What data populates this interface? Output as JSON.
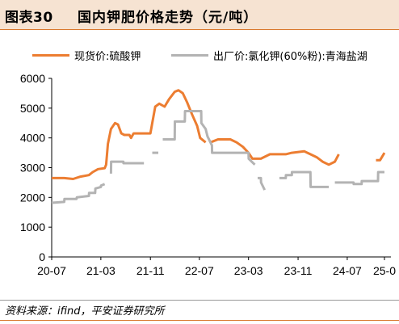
{
  "header": {
    "figure_label": "图表30",
    "title": "国内钾肥价格走势（元/吨）"
  },
  "footer": {
    "source": "资料来源：ifind，平安证券研究所"
  },
  "colors": {
    "title_bg": "#f6e3d2",
    "accent": "#d9792f",
    "series_spot": "#ec7d31",
    "series_factory": "#b3b3b3"
  },
  "chart_data": {
    "type": "line",
    "title": "国内钾肥价格走势（元/吨）",
    "xlabel": "",
    "ylabel": "",
    "ylim": [
      0,
      6000
    ],
    "yticks": [
      0,
      1000,
      2000,
      3000,
      4000,
      5000,
      6000
    ],
    "xlim": [
      "2020-07-01",
      "2025-01-01"
    ],
    "xticks": [
      {
        "date": "2020-07-01",
        "label": "20-07"
      },
      {
        "date": "2021-03-01",
        "label": "21-03"
      },
      {
        "date": "2021-11-01",
        "label": "21-11"
      },
      {
        "date": "2022-07-01",
        "label": "22-07"
      },
      {
        "date": "2023-03-01",
        "label": "23-03"
      },
      {
        "date": "2023-11-01",
        "label": "23-11"
      },
      {
        "date": "2024-07-01",
        "label": "24-07"
      },
      {
        "date": "2025-01-01",
        "label": "25-0"
      }
    ],
    "grid": false,
    "legend_position": "top",
    "series": [
      {
        "name": "现货价:硫酸钾",
        "color": "#ec7d31",
        "segments": [
          [
            [
              "2020-07-01",
              2650
            ],
            [
              "2020-09-01",
              2650
            ],
            [
              "2020-10-15",
              2620
            ],
            [
              "2020-11-20",
              2700
            ],
            [
              "2021-01-01",
              2750
            ],
            [
              "2021-01-20",
              2850
            ],
            [
              "2021-02-15",
              2950
            ],
            [
              "2021-03-20",
              2980
            ],
            [
              "2021-03-27",
              3100
            ],
            [
              "2021-04-05",
              3800
            ],
            [
              "2021-04-20",
              4300
            ],
            [
              "2021-05-10",
              4500
            ],
            [
              "2021-05-25",
              4450
            ],
            [
              "2021-06-10",
              4150
            ],
            [
              "2021-06-25",
              4100
            ],
            [
              "2021-07-20",
              4100
            ],
            [
              "2021-07-28",
              4000
            ],
            [
              "2021-08-10",
              4150
            ],
            [
              "2021-11-01",
              4150
            ],
            [
              "2021-11-10",
              4500
            ],
            [
              "2021-11-25",
              5050
            ],
            [
              "2021-12-15",
              5150
            ],
            [
              "2022-01-10",
              5050
            ],
            [
              "2022-02-01",
              5300
            ],
            [
              "2022-03-01",
              5550
            ],
            [
              "2022-03-20",
              5600
            ],
            [
              "2022-04-10",
              5500
            ],
            [
              "2022-05-01",
              5200
            ],
            [
              "2022-05-25",
              4800
            ],
            [
              "2022-06-20",
              4400
            ],
            [
              "2022-07-05",
              4000
            ],
            [
              "2022-08-01",
              3850
            ]
          ],
          [
            [
              "2022-08-25",
              3850
            ],
            [
              "2022-10-01",
              3950
            ],
            [
              "2022-12-01",
              3950
            ],
            [
              "2023-01-01",
              3850
            ],
            [
              "2023-02-01",
              3700
            ],
            [
              "2023-03-01",
              3500
            ],
            [
              "2023-03-20",
              3300
            ],
            [
              "2023-05-01",
              3300
            ],
            [
              "2023-06-15",
              3450
            ],
            [
              "2023-09-01",
              3450
            ],
            [
              "2023-10-01",
              3500
            ],
            [
              "2023-12-01",
              3550
            ],
            [
              "2024-01-01",
              3450
            ],
            [
              "2024-02-01",
              3350
            ],
            [
              "2024-03-01",
              3200
            ],
            [
              "2024-04-01",
              3100
            ],
            [
              "2024-05-01",
              3200
            ],
            [
              "2024-05-20",
              3450
            ]
          ],
          [
            [
              "2024-11-20",
              3250
            ],
            [
              "2024-12-10",
              3250
            ],
            [
              "2025-01-01",
              3500
            ]
          ]
        ]
      },
      {
        "name": "出厂价:氯化钾(60%粉):青海盐湖",
        "color": "#b3b3b3",
        "segments": [
          [
            [
              "2020-07-01",
              1820
            ],
            [
              "2020-09-01",
              1850
            ],
            [
              "2020-09-02",
              1950
            ],
            [
              "2020-11-01",
              1950
            ],
            [
              "2020-11-02",
              2000
            ],
            [
              "2021-01-01",
              2050
            ],
            [
              "2021-01-02",
              2150
            ],
            [
              "2021-02-01",
              2150
            ],
            [
              "2021-02-02",
              2300
            ],
            [
              "2021-03-01",
              2350
            ],
            [
              "2021-03-02",
              2400
            ],
            [
              "2021-03-20",
              2450
            ]
          ],
          [
            [
              "2021-04-20",
              2800
            ],
            [
              "2021-04-21",
              3200
            ],
            [
              "2021-06-20",
              3200
            ],
            [
              "2021-06-21",
              3150
            ],
            [
              "2021-09-30",
              3150
            ]
          ],
          [
            [
              "2021-11-10",
              3500
            ],
            [
              "2021-12-10",
              3500
            ]
          ],
          [
            [
              "2022-01-01",
              3950
            ],
            [
              "2022-03-01",
              3950
            ],
            [
              "2022-03-02",
              4550
            ],
            [
              "2022-04-20",
              4550
            ],
            [
              "2022-04-21",
              4900
            ],
            [
              "2022-07-10",
              4900
            ],
            [
              "2022-07-11",
              4500
            ],
            [
              "2022-08-01",
              4300
            ],
            [
              "2022-08-10",
              4050
            ],
            [
              "2022-09-01",
              3750
            ],
            [
              "2022-09-02",
              3500
            ],
            [
              "2023-03-01",
              3500
            ],
            [
              "2023-03-02",
              3300
            ],
            [
              "2023-04-01",
              3100
            ]
          ],
          [
            [
              "2023-04-15",
              2650
            ],
            [
              "2023-05-01",
              2650
            ],
            [
              "2023-05-02",
              2500
            ],
            [
              "2023-05-20",
              2250
            ]
          ],
          [
            [
              "2023-08-01",
              2650
            ],
            [
              "2023-09-01",
              2650
            ],
            [
              "2023-09-02",
              2750
            ],
            [
              "2023-10-01",
              2750
            ],
            [
              "2023-10-02",
              2850
            ],
            [
              "2024-01-01",
              2850
            ],
            [
              "2024-01-02",
              2350
            ],
            [
              "2024-04-01",
              2350
            ]
          ],
          [
            [
              "2024-05-01",
              2500
            ],
            [
              "2024-08-01",
              2500
            ],
            [
              "2024-08-02",
              2450
            ],
            [
              "2024-09-10",
              2450
            ],
            [
              "2024-09-11",
              2550
            ],
            [
              "2024-11-30",
              2550
            ],
            [
              "2024-12-01",
              2850
            ],
            [
              "2025-01-01",
              2850
            ]
          ]
        ]
      }
    ]
  }
}
